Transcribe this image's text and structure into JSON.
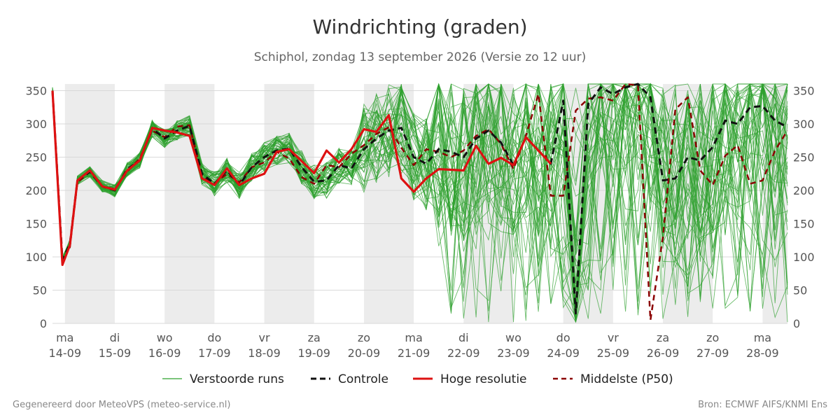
{
  "header": {
    "title": "Windrichting (graden)",
    "subtitle": "Schiphol, zondag 13 september 2026 (Versie zo 12 uur)"
  },
  "footer": {
    "left": "Gegenereerd door MeteoVPS (meteo-service.nl)",
    "right": "Bron: ECMWF AIFS/KNMI Ens"
  },
  "chart_data": {
    "type": "line",
    "title": "Windrichting (graden)",
    "subtitle": "Schiphol, zondag 13 september 2026 (Versie zo 12 uur)",
    "xlabel": "",
    "ylabel": "",
    "x_range_days": [
      -0.25,
      14.5
    ],
    "ylim": [
      0,
      360
    ],
    "yticks": [
      0,
      50,
      100,
      150,
      200,
      250,
      300,
      350
    ],
    "grid": true,
    "legend_position": "bottom",
    "day_ticks": [
      {
        "day": 0,
        "weekday": "ma",
        "date": "14-09"
      },
      {
        "day": 1,
        "weekday": "di",
        "date": "15-09"
      },
      {
        "day": 2,
        "weekday": "wo",
        "date": "16-09"
      },
      {
        "day": 3,
        "weekday": "do",
        "date": "17-09"
      },
      {
        "day": 4,
        "weekday": "vr",
        "date": "18-09"
      },
      {
        "day": 5,
        "weekday": "za",
        "date": "19-09"
      },
      {
        "day": 6,
        "weekday": "zo",
        "date": "20-09"
      },
      {
        "day": 7,
        "weekday": "ma",
        "date": "21-09"
      },
      {
        "day": 8,
        "weekday": "di",
        "date": "22-09"
      },
      {
        "day": 9,
        "weekday": "wo",
        "date": "23-09"
      },
      {
        "day": 10,
        "weekday": "do",
        "date": "24-09"
      },
      {
        "day": 11,
        "weekday": "vr",
        "date": "25-09"
      },
      {
        "day": 12,
        "weekday": "za",
        "date": "26-09"
      },
      {
        "day": 13,
        "weekday": "zo",
        "date": "27-09"
      },
      {
        "day": 14,
        "weekday": "ma",
        "date": "28-09"
      }
    ],
    "shaded_days": [
      0,
      2,
      4,
      6,
      8,
      10,
      12,
      14
    ],
    "colors": {
      "members": "#2ca02c",
      "control": "#111111",
      "hres": "#dd1111",
      "median": "#8b0000",
      "shade": "#ececec",
      "grid": "#d9d9d9"
    },
    "series": [
      {
        "name": "Controle",
        "style": "dashed",
        "x": [
          -0.25,
          -0.05,
          0.1,
          0.25,
          0.5,
          0.75,
          1,
          1.25,
          1.5,
          1.75,
          2,
          2.25,
          2.5,
          2.75,
          3,
          3.25,
          3.5,
          3.75,
          4,
          4.25,
          4.5,
          4.75,
          5,
          5.25,
          5.5,
          5.75,
          6,
          6.25,
          6.5,
          6.75,
          7,
          7.25,
          7.5,
          7.75,
          8,
          8.25,
          8.5,
          8.75,
          9,
          9.25,
          9.5,
          9.75,
          10,
          10.25,
          10.5,
          10.75,
          11,
          11.25,
          11.5,
          11.75,
          12,
          12.25,
          12.5,
          12.75,
          13,
          13.25,
          13.5,
          13.75,
          14,
          14.25,
          14.5
        ],
        "values": [
          350,
          95,
          120,
          215,
          228,
          206,
          200,
          232,
          245,
          293,
          278,
          290,
          297,
          225,
          210,
          230,
          208,
          235,
          250,
          260,
          263,
          235,
          213,
          215,
          238,
          233,
          262,
          278,
          290,
          294,
          250,
          240,
          262,
          258,
          250,
          278,
          290,
          272,
          238,
          280,
          260,
          240,
          335,
          15,
          330,
          355,
          345,
          355,
          360,
          340,
          215,
          218,
          250,
          245,
          265,
          305,
          300,
          325,
          327,
          305,
          295
        ]
      },
      {
        "name": "Hoge resolutie",
        "style": "solid",
        "x": [
          -0.25,
          -0.05,
          0.1,
          0.25,
          0.5,
          0.75,
          1,
          1.25,
          1.5,
          1.75,
          2,
          2.25,
          2.5,
          2.75,
          3,
          3.25,
          3.5,
          3.75,
          4,
          4.25,
          4.5,
          4.75,
          5,
          5.25,
          5.5,
          5.75,
          6,
          6.25,
          6.5,
          6.75,
          7,
          7.25,
          7.5,
          7.75,
          8,
          8.25,
          8.5,
          8.75,
          9,
          9.25,
          9.5,
          9.75
        ],
        "values": [
          350,
          88,
          118,
          215,
          230,
          206,
          201,
          230,
          245,
          294,
          290,
          287,
          282,
          218,
          208,
          233,
          208,
          218,
          225,
          258,
          262,
          244,
          226,
          260,
          242,
          262,
          292,
          288,
          313,
          218,
          198,
          218,
          232,
          231,
          230,
          267,
          240,
          249,
          238,
          280,
          260,
          240
        ]
      },
      {
        "name": "Middelste (P50)",
        "style": "dashed",
        "x": [
          -0.25,
          -0.05,
          0.1,
          0.25,
          0.5,
          0.75,
          1,
          1.25,
          1.5,
          1.75,
          2,
          2.25,
          2.5,
          2.75,
          3,
          3.25,
          3.5,
          3.75,
          4,
          4.25,
          4.5,
          4.75,
          5,
          5.25,
          5.5,
          5.75,
          6,
          6.25,
          6.5,
          6.75,
          7,
          7.25,
          7.5,
          7.75,
          8,
          8.25,
          8.5,
          8.75,
          9,
          9.25,
          9.5,
          9.75,
          10,
          10.25,
          10.5,
          10.75,
          11,
          11.25,
          11.5,
          11.75,
          12,
          12.25,
          12.5,
          12.75,
          13,
          13.25,
          13.5,
          13.75,
          14,
          14.25,
          14.5
        ],
        "values": [
          348,
          92,
          115,
          212,
          228,
          206,
          202,
          228,
          248,
          290,
          280,
          296,
          298,
          222,
          210,
          225,
          212,
          235,
          242,
          258,
          248,
          220,
          210,
          238,
          235,
          255,
          268,
          285,
          295,
          264,
          238,
          262,
          258,
          250,
          260,
          282,
          292,
          270,
          232,
          282,
          345,
          192,
          192,
          320,
          338,
          340,
          335,
          360,
          358,
          5,
          130,
          322,
          340,
          230,
          208,
          252,
          268,
          210,
          215,
          260,
          290
        ]
      }
    ]
  },
  "legend": {
    "members_label": "Verstoorde runs",
    "control_label": "Controle",
    "hres_label": "Hoge resolutie",
    "median_label": "Middelste (P50)"
  }
}
